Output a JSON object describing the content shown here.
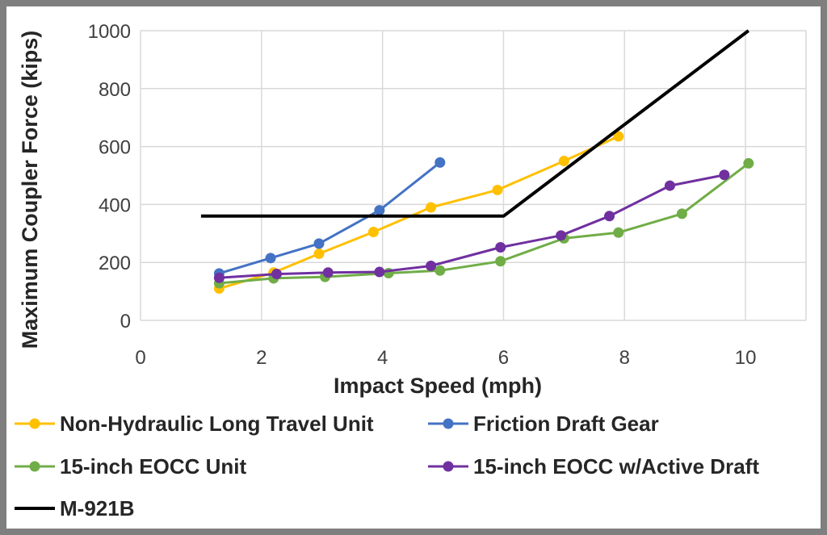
{
  "chart_data": {
    "type": "line",
    "xlabel": "Impact Speed (mph)",
    "ylabel": "Maximum Coupler Force (kips)",
    "xlim": [
      0,
      11
    ],
    "ylim": [
      0,
      1000
    ],
    "xticks": [
      0,
      2,
      4,
      6,
      8,
      10
    ],
    "yticks": [
      0,
      200,
      400,
      600,
      800,
      1000
    ],
    "grid": true,
    "legend_position": "bottom",
    "series": [
      {
        "name": "Non-Hydraulic Long Travel Unit",
        "color": "#FFC000",
        "markers": true,
        "x": [
          1.3,
          2.2,
          2.95,
          3.85,
          4.8,
          5.9,
          7.0,
          7.9
        ],
        "y": [
          110,
          165,
          230,
          305,
          390,
          450,
          550,
          635
        ]
      },
      {
        "name": "Friction Draft Gear",
        "color": "#4472C4",
        "markers": true,
        "x": [
          1.3,
          2.15,
          2.95,
          3.95,
          4.95
        ],
        "y": [
          162,
          215,
          265,
          380,
          545
        ]
      },
      {
        "name": "15-inch EOCC Unit",
        "color": "#70AD47",
        "markers": true,
        "x": [
          1.3,
          2.2,
          3.05,
          4.1,
          4.95,
          5.95,
          7.0,
          7.9,
          8.95,
          10.05
        ],
        "y": [
          128,
          145,
          150,
          163,
          172,
          204,
          283,
          303,
          368,
          542
        ]
      },
      {
        "name": "15-inch EOCC w/Active Draft",
        "color": "#7030A0",
        "markers": true,
        "x": [
          1.3,
          2.25,
          3.1,
          3.95,
          4.8,
          5.95,
          6.95,
          7.75,
          8.75,
          9.65
        ],
        "y": [
          147,
          160,
          165,
          167,
          188,
          252,
          293,
          360,
          465,
          502
        ]
      },
      {
        "name": "M-921B",
        "color": "#000000",
        "markers": false,
        "x": [
          1.0,
          6.0,
          10.05
        ],
        "y": [
          360,
          360,
          1000
        ]
      }
    ]
  }
}
